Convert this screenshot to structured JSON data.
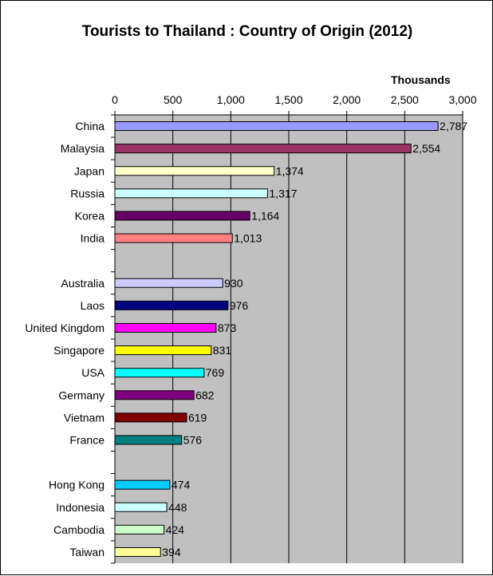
{
  "chart_data": {
    "type": "bar",
    "orientation": "horizontal",
    "title": "Tourists to Thailand : Country of Origin (2012)",
    "unit_label": "Thousands",
    "xlabel": "Thousands",
    "ylabel": "",
    "xlim": [
      0,
      3000
    ],
    "ticks": [
      {
        "value": 0,
        "label": "0"
      },
      {
        "value": 500,
        "label": "500"
      },
      {
        "value": 1000,
        "label": "1,000"
      },
      {
        "value": 1500,
        "label": "1,500"
      },
      {
        "value": 2000,
        "label": "2,000"
      },
      {
        "value": 2500,
        "label": "2,500"
      },
      {
        "value": 3000,
        "label": "3,000"
      }
    ],
    "grid": true,
    "plot_background": "#c0c0c0",
    "rows": [
      {
        "category": "China",
        "value": 2787,
        "label": "2,787",
        "color": "#9999ff"
      },
      {
        "category": "Malaysia",
        "value": 2554,
        "label": "2,554",
        "color": "#993366"
      },
      {
        "category": "Japan",
        "value": 1374,
        "label": "1,374",
        "color": "#ffffcc"
      },
      {
        "category": "Russia",
        "value": 1317,
        "label": "1,317",
        "color": "#ccffff"
      },
      {
        "category": "Korea",
        "value": 1164,
        "label": "1,164",
        "color": "#660066"
      },
      {
        "category": "India",
        "value": 1013,
        "label": "1,013",
        "color": "#ff8080"
      },
      {
        "category": "",
        "value": null,
        "label": "",
        "color": ""
      },
      {
        "category": "Australia",
        "value": 930,
        "label": "930",
        "color": "#ccccff"
      },
      {
        "category": "Laos",
        "value": 976,
        "label": "976",
        "color": "#000080"
      },
      {
        "category": "United Kingdom",
        "value": 873,
        "label": "873",
        "color": "#ff00ff"
      },
      {
        "category": "Singapore",
        "value": 831,
        "label": "831",
        "color": "#ffff00"
      },
      {
        "category": "USA",
        "value": 769,
        "label": "769",
        "color": "#00ffff"
      },
      {
        "category": "Germany",
        "value": 682,
        "label": "682",
        "color": "#800080"
      },
      {
        "category": "Vietnam",
        "value": 619,
        "label": "619",
        "color": "#800000"
      },
      {
        "category": "France",
        "value": 576,
        "label": "576",
        "color": "#008080"
      },
      {
        "category": "",
        "value": null,
        "label": "",
        "color": ""
      },
      {
        "category": "Hong Kong",
        "value": 474,
        "label": "474",
        "color": "#00ccff"
      },
      {
        "category": "Indonesia",
        "value": 448,
        "label": "448",
        "color": "#ccffff"
      },
      {
        "category": "Cambodia",
        "value": 424,
        "label": "424",
        "color": "#ccffcc"
      },
      {
        "category": "Taiwan",
        "value": 394,
        "label": "394",
        "color": "#ffff99"
      }
    ]
  }
}
